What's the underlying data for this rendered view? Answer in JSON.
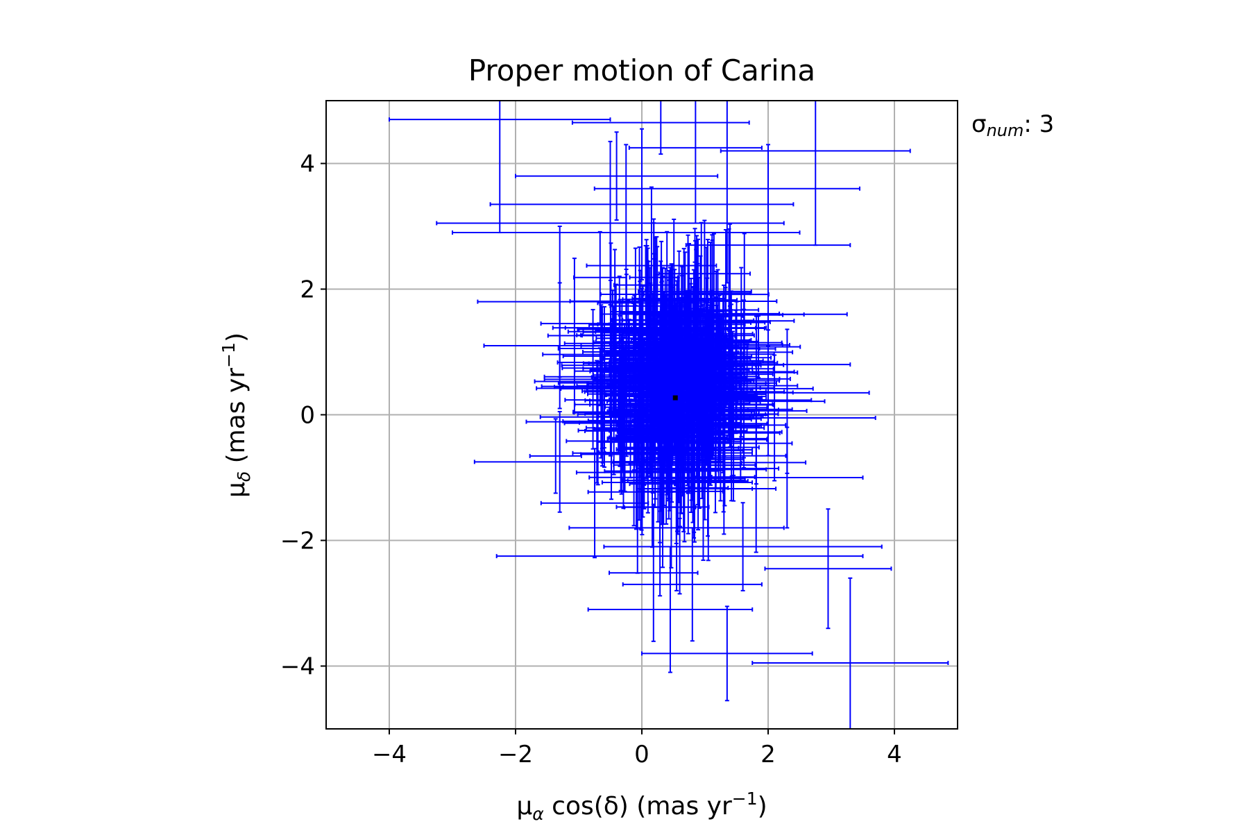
{
  "chart_data": {
    "type": "scatter",
    "title": "Proper motion of Carina",
    "xlabel": {
      "main": "μ",
      "sub": "α",
      "rest": " cos(δ) (mas yr",
      "sup": "−1",
      "close": ")"
    },
    "ylabel": {
      "main": "μ",
      "sub": "δ",
      "rest": " (mas yr",
      "sup": "−1",
      "close": ")"
    },
    "xlim": [
      -5,
      5
    ],
    "ylim": [
      -5,
      5
    ],
    "xticks": [
      -4,
      -2,
      0,
      2,
      4
    ],
    "yticks": [
      -4,
      -2,
      0,
      2,
      4
    ],
    "xtick_labels": [
      "−4",
      "−2",
      "0",
      "2",
      "4"
    ],
    "ytick_labels": [
      "−4",
      "−2",
      "0",
      "2",
      "4"
    ],
    "grid": true,
    "annotation": {
      "main": "σ",
      "sub": "num",
      "rest": ": 3"
    },
    "series": [
      {
        "marker": "errorbar",
        "color": "#0000ff",
        "cluster": {
          "n": 420,
          "mean_x": 0.5,
          "mean_y": 0.5,
          "sd_x": 0.55,
          "sd_y": 0.75
        },
        "points": [
          {
            "x": -2.25,
            "y": 4.7,
            "xerr": 1.75,
            "yerr": 1.8
          },
          {
            "x": 0.85,
            "y": 4.25,
            "xerr": 1.05,
            "yerr": 1.2
          },
          {
            "x": 2.75,
            "y": 4.2,
            "xerr": 1.5,
            "yerr": 1.5
          },
          {
            "x": 0.0,
            "y": 3.35,
            "xerr": 2.4,
            "yerr": 1.2
          },
          {
            "x": 1.35,
            "y": 3.6,
            "xerr": 2.1,
            "yerr": 1.5
          },
          {
            "x": -0.5,
            "y": 3.05,
            "xerr": 2.75,
            "yerr": 1.3
          },
          {
            "x": -0.25,
            "y": 2.9,
            "xerr": 2.75,
            "yerr": 1.4
          },
          {
            "x": 2.0,
            "y": 2.7,
            "xerr": 1.3,
            "yerr": 1.6
          },
          {
            "x": -1.3,
            "y": 1.8,
            "xerr": 1.3,
            "yerr": 1.2
          },
          {
            "x": 2.0,
            "y": 1.6,
            "xerr": 1.25,
            "yerr": 1.1
          },
          {
            "x": -1.3,
            "y": 1.1,
            "xerr": 1.2,
            "yerr": 1.0
          },
          {
            "x": 1.5,
            "y": 0.8,
            "xerr": 1.8,
            "yerr": 1.0
          },
          {
            "x": 2.0,
            "y": 0.35,
            "xerr": 1.6,
            "yerr": 1.0
          },
          {
            "x": 2.1,
            "y": -0.05,
            "xerr": 1.6,
            "yerr": 1.0
          },
          {
            "x": -1.3,
            "y": -0.75,
            "xerr": 1.35,
            "yerr": 0.8
          },
          {
            "x": 2.3,
            "y": -1.0,
            "xerr": 1.2,
            "yerr": 0.8
          },
          {
            "x": 1.6,
            "y": -2.1,
            "xerr": 2.2,
            "yerr": 0.7
          },
          {
            "x": 0.6,
            "y": -2.25,
            "xerr": 2.9,
            "yerr": 0.6
          },
          {
            "x": 2.95,
            "y": -2.45,
            "xerr": 1.0,
            "yerr": 0.95
          },
          {
            "x": 0.45,
            "y": -3.1,
            "xerr": 1.3,
            "yerr": 1.0
          },
          {
            "x": 1.35,
            "y": -3.8,
            "xerr": 1.35,
            "yerr": 0.75
          },
          {
            "x": 3.3,
            "y": -3.95,
            "xerr": 1.55,
            "yerr": 1.35
          },
          {
            "x": 0.55,
            "y": -1.8,
            "xerr": 1.7,
            "yerr": 1.0
          },
          {
            "x": 0.8,
            "y": -2.7,
            "xerr": 1.1,
            "yerr": 0.9
          },
          {
            "x": -0.4,
            "y": 3.8,
            "xerr": 1.6,
            "yerr": 0.7
          },
          {
            "x": 0.3,
            "y": 4.65,
            "xerr": 1.4,
            "yerr": 0.5
          }
        ]
      },
      {
        "name": "",
        "marker": "point",
        "color": "#000000",
        "points": [
          {
            "x": 0.53,
            "y": 0.27
          }
        ]
      }
    ]
  }
}
